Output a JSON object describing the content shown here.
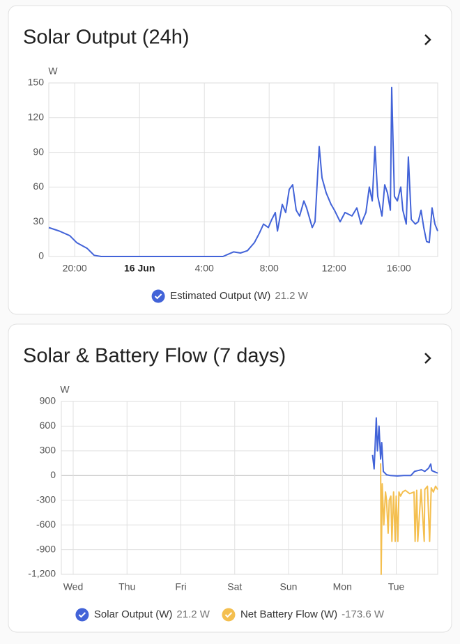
{
  "chart_data": [
    {
      "type": "line",
      "title": "Solar Output (24h)",
      "y_label": "W",
      "xlim": [
        18.4,
        42.4
      ],
      "xticks": [
        {
          "value": 20,
          "label": "20:00"
        },
        {
          "value": 24,
          "label": "16 Jun",
          "bold": true
        },
        {
          "value": 28,
          "label": "4:00"
        },
        {
          "value": 32,
          "label": "8:00"
        },
        {
          "value": 36,
          "label": "12:00"
        },
        {
          "value": 40,
          "label": "16:00"
        }
      ],
      "ylim": [
        0,
        150
      ],
      "yticks": [
        0,
        30,
        60,
        90,
        120,
        150
      ],
      "grid": true,
      "series": [
        {
          "name": "Estimated Output (W)",
          "state": "21.2 W",
          "color": "#4263d8",
          "x": [
            18.4,
            19.05,
            19.69,
            20.12,
            20.77,
            21.2,
            21.63,
            29.15,
            29.8,
            30.23,
            30.66,
            31.09,
            31.39,
            31.65,
            31.95,
            32.16,
            32.38,
            32.51,
            32.81,
            33.02,
            33.24,
            33.45,
            33.67,
            33.88,
            34.14,
            34.31,
            34.66,
            34.83,
            35.09,
            35.26,
            35.52,
            35.82,
            36.03,
            36.38,
            36.68,
            37.11,
            37.41,
            37.67,
            37.97,
            38.18,
            38.36,
            38.53,
            38.7,
            38.96,
            39.13,
            39.3,
            39.48,
            39.56,
            39.73,
            39.91,
            40.12,
            40.25,
            40.46,
            40.59,
            40.77,
            41.02,
            41.2,
            41.37,
            41.54,
            41.71,
            41.88,
            42.05,
            42.23,
            42.4
          ],
          "values": [
            25,
            22,
            18,
            12,
            7,
            1,
            0,
            0,
            4,
            3,
            5,
            12,
            20,
            28,
            25,
            32,
            38,
            22,
            45,
            38,
            58,
            62,
            40,
            35,
            48,
            42,
            25,
            30,
            95,
            68,
            55,
            45,
            40,
            30,
            38,
            35,
            42,
            28,
            38,
            60,
            48,
            95,
            52,
            35,
            62,
            55,
            40,
            146,
            52,
            48,
            60,
            40,
            28,
            86,
            32,
            28,
            30,
            40,
            25,
            13,
            12,
            42,
            28,
            22
          ]
        }
      ]
    },
    {
      "type": "line",
      "title": "Solar & Battery Flow (7 days)",
      "y_label": "W",
      "xlim": [
        -0.22,
        6.77
      ],
      "xticks": [
        {
          "value": 0,
          "label": "Wed"
        },
        {
          "value": 1,
          "label": "Thu"
        },
        {
          "value": 2,
          "label": "Fri"
        },
        {
          "value": 3,
          "label": "Sat"
        },
        {
          "value": 4,
          "label": "Sun"
        },
        {
          "value": 5,
          "label": "Mon"
        },
        {
          "value": 6,
          "label": "Tue"
        }
      ],
      "ylim": [
        -1200,
        900
      ],
      "yticks": [
        {
          "value": -1200,
          "label": "-1,200"
        },
        -900,
        -600,
        -300,
        0,
        300,
        600,
        900
      ],
      "grid": true,
      "series": [
        {
          "name": "Solar Output (W)",
          "state": "21.2 W",
          "color": "#4263d8",
          "x": [
            5.56,
            5.59,
            5.63,
            5.65,
            5.68,
            5.71,
            5.73,
            5.76,
            5.82,
            5.89,
            6.02,
            6.14,
            6.27,
            6.34,
            6.4,
            6.47,
            6.53,
            6.6,
            6.64,
            6.66,
            6.73,
            6.77
          ],
          "values": [
            250,
            80,
            700,
            300,
            600,
            200,
            400,
            50,
            10,
            0,
            -5,
            0,
            0,
            50,
            60,
            70,
            50,
            90,
            140,
            60,
            40,
            30
          ]
        },
        {
          "name": "Net Battery Flow (W)",
          "state": "-173.6 W",
          "color": "#f4bf4f",
          "x": [
            5.71,
            5.72,
            5.74,
            5.77,
            5.8,
            5.82,
            5.85,
            5.87,
            5.9,
            5.92,
            5.95,
            5.98,
            6.0,
            6.03,
            6.05,
            6.08,
            6.12,
            6.17,
            6.25,
            6.33,
            6.35,
            6.38,
            6.4,
            6.46,
            6.52,
            6.53,
            6.58,
            6.62,
            6.65,
            6.69,
            6.73,
            6.77
          ],
          "values": [
            150,
            -1200,
            -100,
            -600,
            -200,
            -300,
            -700,
            -300,
            -250,
            -800,
            -200,
            -800,
            -250,
            -800,
            -200,
            -250,
            -200,
            -180,
            -220,
            -200,
            -800,
            -180,
            -800,
            -170,
            -800,
            -170,
            -130,
            -800,
            -150,
            -200,
            -130,
            -170
          ]
        }
      ]
    }
  ]
}
